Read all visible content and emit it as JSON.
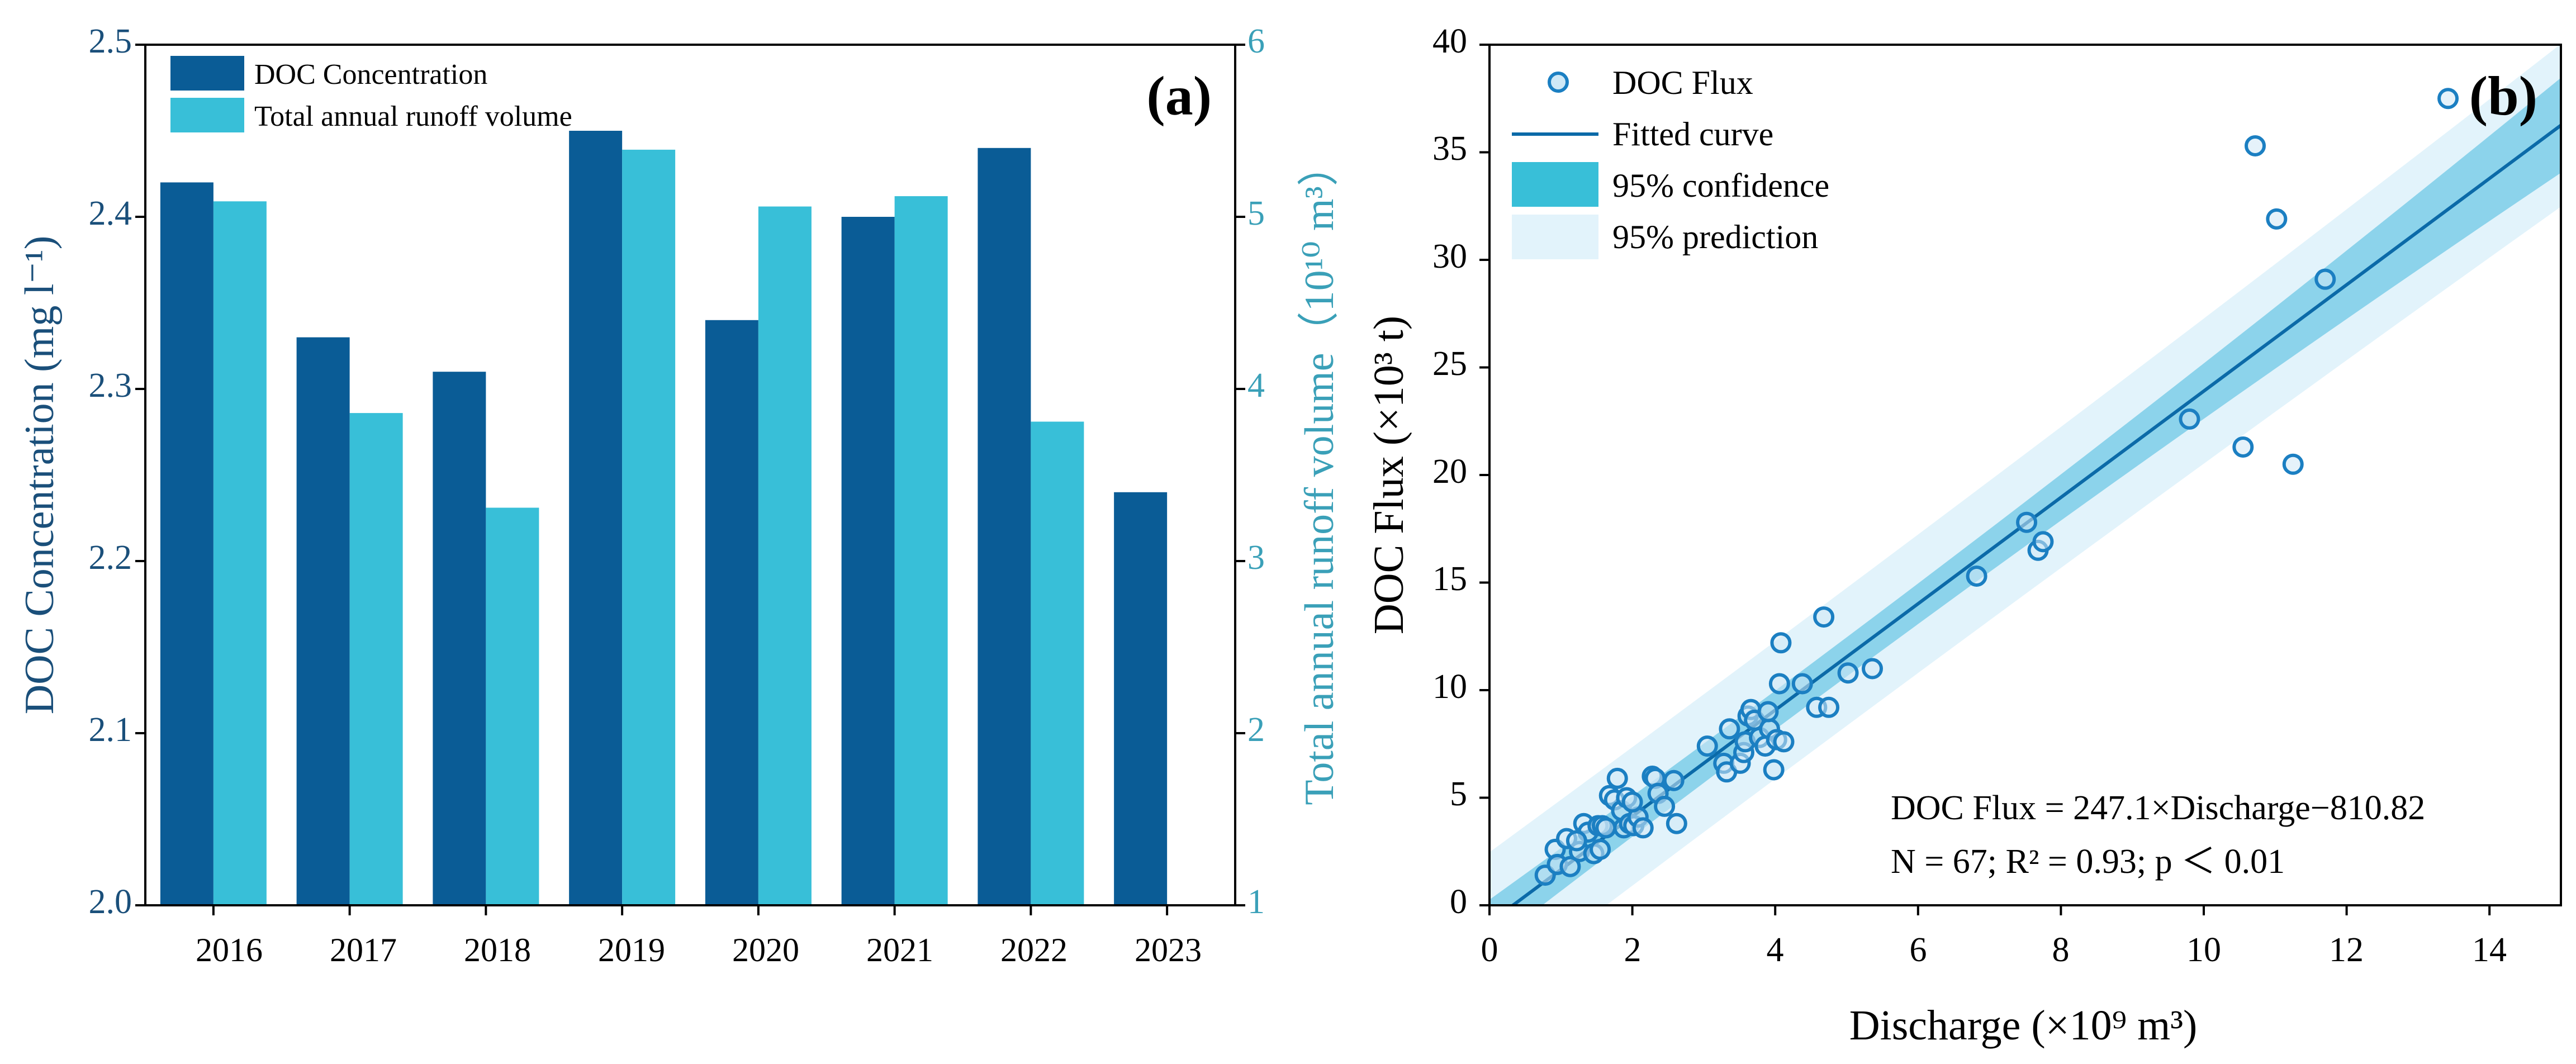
{
  "chart_data": [
    {
      "type": "bar",
      "panel_label": "(a)",
      "categories": [
        "2016",
        "2017",
        "2018",
        "2019",
        "2020",
        "2021",
        "2022",
        "2023"
      ],
      "series": [
        {
          "name": "DOC Concentration",
          "axis": "left",
          "color": "#0a5c96",
          "values": [
            2.42,
            2.33,
            2.31,
            2.45,
            2.34,
            2.4,
            2.44,
            2.24
          ]
        },
        {
          "name": "Total annual runoff volume",
          "axis": "right",
          "color": "#38bfd8",
          "values": [
            5.09,
            3.86,
            3.31,
            5.39,
            5.06,
            5.12,
            3.81,
            null
          ]
        }
      ],
      "ylabel_left": "DOC Concentration (mg l⁻¹)",
      "ylabel_right": "Total annual runoff volume（10¹⁰ m³）",
      "ylim_left": [
        2.0,
        2.5
      ],
      "ylim_right": [
        1,
        6
      ],
      "yticks_left": [
        "2.0",
        "2.1",
        "2.2",
        "2.3",
        "2.4",
        "2.5"
      ],
      "yticks_right": [
        "1",
        "2",
        "3",
        "4",
        "5",
        "6"
      ],
      "legend_position": "top-left"
    },
    {
      "type": "scatter",
      "panel_label": "(b)",
      "series_name": "DOC Flux",
      "x": [
        0.78,
        0.92,
        0.95,
        1.08,
        1.13,
        1.26,
        1.32,
        1.38,
        1.46,
        1.52,
        1.58,
        1.63,
        1.68,
        1.75,
        1.79,
        1.85,
        1.88,
        1.92,
        1.96,
        2.02,
        2.08,
        2.15,
        2.28,
        2.32,
        2.36,
        2.58,
        2.62,
        3.05,
        3.28,
        3.32,
        3.36,
        3.51,
        3.56,
        3.58,
        3.62,
        3.66,
        3.71,
        3.78,
        3.86,
        3.92,
        3.98,
        4.02,
        4.06,
        4.08,
        4.12,
        4.38,
        4.58,
        4.68,
        4.75,
        5.02,
        5.36,
        6.82,
        7.52,
        7.68,
        7.75,
        9.8,
        10.55,
        10.72,
        11.02,
        11.25,
        11.7,
        13.42,
        1.55,
        2.45,
        3.9,
        1.22,
        2.0
      ],
      "y": [
        1.4,
        2.6,
        1.9,
        3.1,
        1.8,
        2.5,
        3.8,
        3.4,
        2.4,
        3.7,
        3.7,
        3.6,
        5.1,
        4.9,
        5.9,
        4.4,
        3.6,
        5.0,
        3.8,
        3.7,
        4.1,
        3.6,
        6.0,
        5.9,
        5.2,
        5.8,
        3.8,
        7.4,
        6.6,
        6.2,
        8.2,
        6.6,
        7.1,
        7.6,
        8.8,
        9.1,
        8.6,
        7.8,
        7.4,
        8.2,
        6.3,
        7.7,
        10.3,
        12.2,
        7.6,
        10.3,
        9.2,
        13.4,
        9.2,
        10.8,
        11.0,
        15.3,
        17.8,
        16.5,
        16.9,
        22.6,
        21.3,
        35.3,
        31.9,
        20.5,
        29.1,
        37.5,
        2.6,
        4.6,
        9.0,
        3.0,
        4.8
      ],
      "fit": {
        "slope": 247.1,
        "intercept": -810.82,
        "x_scale": 1e-09,
        "y_scale": 0.001
      },
      "confidence_band_halfwidth": 0.9,
      "prediction_band_halfwidth": 3.2,
      "legend": [
        "DOC Flux",
        "Fitted curve",
        "95% confidence",
        "95% prediction"
      ],
      "legend_position": "top-left",
      "xlabel": "Discharge (×10⁹ m³)",
      "ylabel": "DOC Flux (×10³ t)",
      "xlim": [
        0,
        15
      ],
      "ylim": [
        0,
        40
      ],
      "xticks": [
        "0",
        "2",
        "4",
        "6",
        "8",
        "10",
        "12",
        "14"
      ],
      "yticks": [
        "0",
        "5",
        "10",
        "15",
        "20",
        "25",
        "30",
        "35",
        "40"
      ],
      "annotations": [
        "DOC Flux = 247.1×Discharge−810.82",
        "N = 67; R² = 0.93; p ＜ 0.01"
      ],
      "colors": {
        "marker": "#1b7fc2",
        "fit_line": "#0b6aa8",
        "confidence": "#7dcde8",
        "prediction": "#e2f3fb"
      }
    }
  ]
}
